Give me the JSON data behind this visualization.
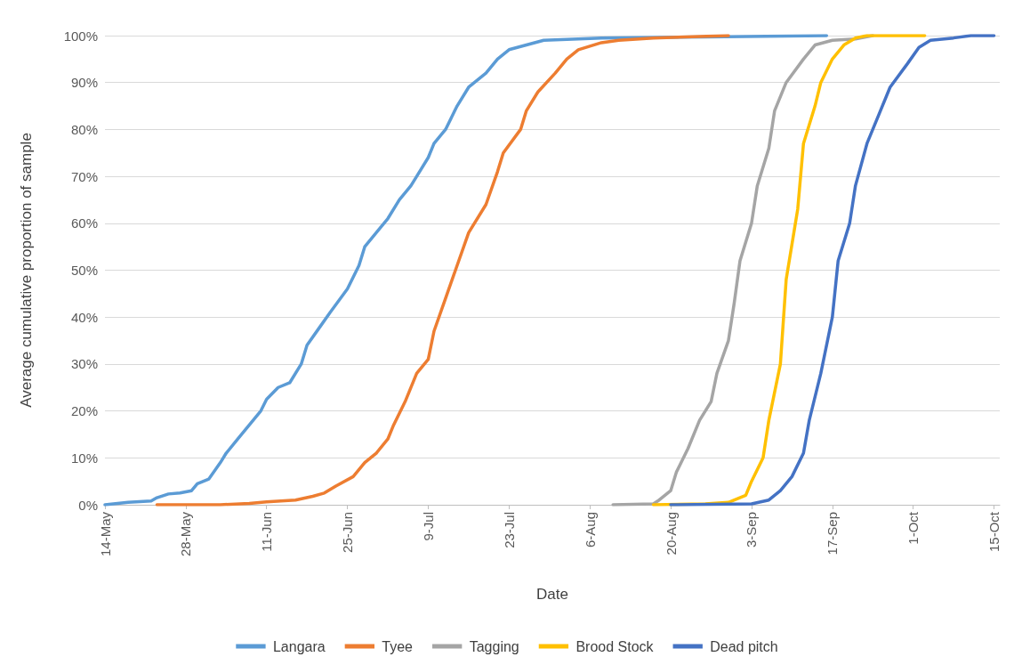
{
  "chart_data": {
    "type": "line",
    "xlabel": "Date",
    "ylabel": "Average cumulative proportion of sample",
    "xlim": [
      "--05-14",
      "--10-16"
    ],
    "ylim": [
      0,
      100
    ],
    "xticks": [
      {
        "value": "--05-14",
        "label": "14-May"
      },
      {
        "value": "--05-28",
        "label": "28-May"
      },
      {
        "value": "--06-11",
        "label": "11-Jun"
      },
      {
        "value": "--06-25",
        "label": "25-Jun"
      },
      {
        "value": "--07-09",
        "label": "9-Jul"
      },
      {
        "value": "--07-23",
        "label": "23-Jul"
      },
      {
        "value": "--08-06",
        "label": "6-Aug"
      },
      {
        "value": "--08-20",
        "label": "20-Aug"
      },
      {
        "value": "--09-03",
        "label": "3-Sep"
      },
      {
        "value": "--09-17",
        "label": "17-Sep"
      },
      {
        "value": "--10-01",
        "label": "1-Oct"
      },
      {
        "value": "--10-15",
        "label": "15-Oct"
      }
    ],
    "yticks": [
      {
        "value": 0,
        "label": "0%"
      },
      {
        "value": 10,
        "label": "10%"
      },
      {
        "value": 20,
        "label": "20%"
      },
      {
        "value": 30,
        "label": "30%"
      },
      {
        "value": 40,
        "label": "40%"
      },
      {
        "value": 50,
        "label": "50%"
      },
      {
        "value": 60,
        "label": "60%"
      },
      {
        "value": 70,
        "label": "70%"
      },
      {
        "value": 80,
        "label": "80%"
      },
      {
        "value": 90,
        "label": "90%"
      },
      {
        "value": 100,
        "label": "100%"
      }
    ],
    "grid": "y",
    "legend": "bottom",
    "marker": "none",
    "line_style": "solid",
    "series": [
      {
        "name": "Langara",
        "color": "#5b9bd5",
        "x": [
          "--05-14",
          "--05-18",
          "--05-22",
          "--05-23",
          "--05-25",
          "--05-27",
          "--05-29",
          "--05-30",
          "--06-01",
          "--06-03",
          "--06-04",
          "--06-06",
          "--06-08",
          "--06-10",
          "--06-11",
          "--06-13",
          "--06-15",
          "--06-17",
          "--06-18",
          "--06-20",
          "--06-22",
          "--06-25",
          "--06-27",
          "--06-28",
          "--07-02",
          "--07-04",
          "--07-06",
          "--07-07",
          "--07-09",
          "--07-10",
          "--07-12",
          "--07-14",
          "--07-16",
          "--07-19",
          "--07-21",
          "--07-23",
          "--07-26",
          "--07-29",
          "--08-02",
          "--08-08",
          "--08-26",
          "--09-16"
        ],
        "values": [
          0,
          0.5,
          0.8,
          1.5,
          2.3,
          2.5,
          3,
          4.5,
          5.5,
          9,
          11,
          14,
          17,
          20,
          22.5,
          25,
          26,
          30,
          34,
          37.5,
          41,
          46,
          51,
          55,
          61,
          65,
          68,
          70,
          74,
          77,
          80,
          85,
          89,
          92,
          95,
          97,
          98,
          99,
          99.2,
          99.5,
          99.7,
          100
        ]
      },
      {
        "name": "Tyee",
        "color": "#ed7d31",
        "x": [
          "--05-23",
          "--06-03",
          "--06-08",
          "--06-11",
          "--06-16",
          "--06-19",
          "--06-21",
          "--06-23",
          "--06-26",
          "--06-28",
          "--06-30",
          "--07-02",
          "--07-03",
          "--07-05",
          "--07-07",
          "--07-09",
          "--07-10",
          "--07-12",
          "--07-14",
          "--07-16",
          "--07-19",
          "--07-21",
          "--07-22",
          "--07-25",
          "--07-26",
          "--07-28",
          "--07-31",
          "--08-02",
          "--08-04",
          "--08-08",
          "--08-11",
          "--08-17",
          "--08-30"
        ],
        "values": [
          0,
          0,
          0.3,
          0.6,
          1,
          1.8,
          2.5,
          4,
          6,
          9,
          11,
          14,
          17,
          22,
          28,
          31,
          37,
          44,
          51,
          58,
          64,
          71,
          75,
          80,
          84,
          88,
          92,
          95,
          97,
          98.5,
          99,
          99.5,
          100
        ]
      },
      {
        "name": "Tagging",
        "color": "#a5a5a5",
        "x": [
          "--08-10",
          "--08-17",
          "--08-18",
          "--08-20",
          "--08-21",
          "--08-23",
          "--08-25",
          "--08-27",
          "--08-28",
          "--08-30",
          "--08-31",
          "--09-01",
          "--09-03",
          "--09-04",
          "--09-06",
          "--09-07",
          "--09-09",
          "--09-12",
          "--09-14",
          "--09-17",
          "--09-21",
          "--09-24"
        ],
        "values": [
          0,
          0.2,
          1,
          3,
          7,
          12,
          18,
          22,
          28,
          35,
          43,
          52,
          60,
          68,
          76,
          84,
          90,
          95,
          98,
          99,
          99.3,
          100
        ]
      },
      {
        "name": "Brood Stock",
        "color": "#ffc000",
        "x": [
          "--08-17",
          "--08-26",
          "--08-30",
          "--09-02",
          "--09-03",
          "--09-05",
          "--09-06",
          "--09-08",
          "--09-09",
          "--09-11",
          "--09-12",
          "--09-14",
          "--09-15",
          "--09-17",
          "--09-19",
          "--09-21",
          "--09-23",
          "--10-03"
        ],
        "values": [
          0,
          0.2,
          0.5,
          2,
          5,
          10,
          18,
          30,
          48,
          63,
          77,
          85,
          90,
          95,
          98,
          99.5,
          100,
          100
        ]
      },
      {
        "name": "Dead pitch",
        "color": "#4472c4",
        "x": [
          "--08-20",
          "--09-03",
          "--09-06",
          "--09-08",
          "--09-10",
          "--09-12",
          "--09-13",
          "--09-15",
          "--09-17",
          "--09-18",
          "--09-20",
          "--09-21",
          "--09-23",
          "--09-25",
          "--09-27",
          "--09-30",
          "--10-02",
          "--10-04",
          "--10-08",
          "--10-11",
          "--10-15"
        ],
        "values": [
          0,
          0.2,
          1,
          3,
          6,
          11,
          18,
          28,
          40,
          52,
          60,
          68,
          77,
          83,
          89,
          94,
          97.5,
          99,
          99.5,
          100,
          100
        ]
      }
    ]
  }
}
